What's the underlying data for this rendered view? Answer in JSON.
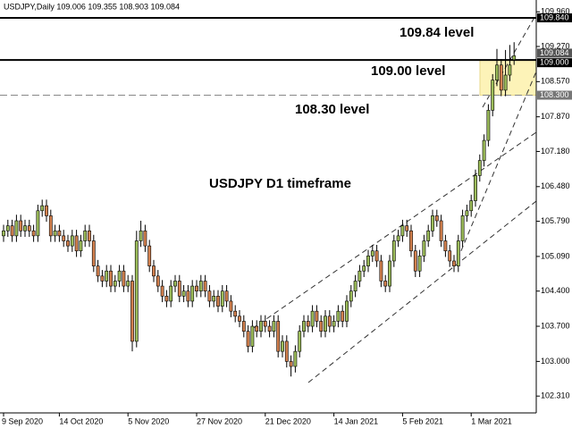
{
  "chart_data": {
    "type": "candlestick",
    "title": "USDJPY,Daily  109.006 109.355 108.903 109.084",
    "annotation": "USDJPY D1 timeframe",
    "categories": [
      "9 Sep 2020",
      null,
      null,
      null,
      null,
      null,
      null,
      null,
      null,
      null,
      null,
      null,
      null,
      "14 Oct 2020",
      null,
      null,
      null,
      null,
      null,
      null,
      null,
      null,
      null,
      null,
      null,
      null,
      null,
      null,
      null,
      "5 Nov 2020",
      null,
      null,
      null,
      null,
      null,
      null,
      null,
      null,
      null,
      null,
      null,
      null,
      null,
      null,
      null,
      "27 Nov 2020",
      null,
      null,
      null,
      null,
      null,
      null,
      null,
      null,
      null,
      null,
      null,
      null,
      null,
      null,
      null,
      "21 Dec 2020",
      null,
      null,
      null,
      null,
      null,
      null,
      null,
      null,
      null,
      null,
      null,
      null,
      null,
      null,
      null,
      "14 Jan 2021",
      null,
      null,
      null,
      null,
      null,
      null,
      null,
      null,
      null,
      null,
      null,
      null,
      null,
      null,
      null,
      "5 Feb 2021",
      null,
      null,
      null,
      null,
      null,
      null,
      null,
      null,
      null,
      null,
      null,
      null,
      null,
      null,
      null,
      "1 Mar 2021",
      null,
      null,
      null,
      null,
      null,
      null,
      null,
      null,
      null,
      null
    ],
    "open": [
      105.5,
      105.6,
      105.7,
      105.5,
      105.8,
      105.6,
      105.7,
      105.6,
      105.5,
      106.0,
      106.1,
      105.9,
      105.5,
      105.6,
      105.5,
      105.4,
      105.3,
      105.5,
      105.2,
      105.4,
      105.6,
      105.4,
      104.9,
      104.7,
      104.6,
      104.8,
      104.5,
      104.6,
      104.8,
      104.5,
      104.6,
      103.4,
      105.4,
      105.6,
      105.3,
      104.9,
      104.7,
      104.5,
      104.3,
      104.2,
      104.5,
      104.6,
      104.3,
      104.4,
      104.2,
      104.5,
      104.4,
      104.6,
      104.4,
      104.2,
      104.3,
      104.1,
      104.4,
      104.2,
      104.0,
      103.9,
      103.8,
      103.6,
      103.3,
      103.7,
      103.6,
      103.8,
      103.7,
      103.6,
      103.8,
      103.2,
      103.4,
      103.0,
      102.9,
      103.2,
      103.6,
      103.8,
      103.7,
      104.0,
      103.8,
      103.6,
      103.9,
      103.7,
      103.8,
      104.0,
      103.8,
      104.2,
      104.4,
      104.6,
      104.8,
      104.9,
      105.1,
      105.2,
      105.0,
      104.6,
      104.5,
      105.0,
      105.4,
      105.5,
      105.7,
      105.6,
      105.2,
      104.8,
      105.1,
      105.4,
      105.6,
      105.9,
      105.8,
      105.4,
      105.2,
      105.0,
      104.9,
      105.4,
      105.9,
      106.0,
      106.2,
      106.7,
      107.0,
      107.4,
      108.0,
      108.6,
      108.9,
      108.4,
      108.7,
      109.006
    ],
    "high": [
      105.72,
      105.82,
      105.82,
      105.92,
      105.92,
      105.82,
      105.82,
      105.72,
      106.12,
      106.22,
      106.22,
      106.02,
      105.72,
      105.72,
      105.62,
      105.52,
      105.62,
      105.62,
      105.52,
      105.72,
      105.72,
      105.52,
      105.02,
      104.82,
      104.92,
      104.92,
      104.72,
      104.92,
      104.92,
      104.72,
      104.72,
      105.6,
      105.8,
      105.72,
      105.42,
      105.02,
      104.82,
      104.62,
      104.42,
      104.62,
      104.72,
      104.72,
      104.52,
      104.52,
      104.62,
      104.62,
      104.72,
      104.72,
      104.52,
      104.42,
      104.42,
      104.52,
      104.52,
      104.32,
      104.12,
      104.02,
      103.92,
      103.72,
      103.82,
      103.82,
      103.92,
      103.92,
      103.82,
      103.92,
      103.92,
      103.52,
      103.52,
      103.12,
      103.32,
      103.72,
      103.92,
      103.92,
      104.12,
      104.12,
      103.92,
      104.02,
      104.02,
      103.92,
      104.12,
      104.12,
      104.32,
      104.52,
      104.72,
      104.92,
      105.02,
      105.22,
      105.32,
      105.32,
      105.12,
      104.72,
      105.12,
      105.52,
      105.62,
      105.82,
      105.82,
      105.72,
      105.32,
      105.22,
      105.52,
      105.72,
      106.02,
      106.02,
      105.92,
      105.52,
      105.32,
      105.12,
      105.52,
      106.02,
      106.12,
      106.32,
      106.82,
      107.12,
      107.52,
      108.12,
      108.72,
      109.22,
      109.02,
      109.2,
      109.3,
      109.355
    ],
    "low": [
      105.38,
      105.48,
      105.38,
      105.38,
      105.48,
      105.48,
      105.48,
      105.38,
      105.38,
      105.88,
      105.78,
      105.38,
      105.38,
      105.38,
      105.28,
      105.18,
      105.18,
      105.08,
      105.08,
      105.28,
      105.28,
      104.78,
      104.58,
      104.48,
      104.48,
      104.38,
      104.38,
      104.48,
      104.38,
      104.38,
      103.2,
      103.28,
      105.28,
      105.18,
      104.78,
      104.58,
      104.38,
      104.18,
      104.08,
      104.08,
      104.38,
      104.18,
      104.18,
      104.08,
      104.08,
      104.28,
      104.28,
      104.28,
      104.08,
      104.08,
      103.98,
      103.98,
      104.08,
      103.88,
      103.78,
      103.68,
      103.48,
      103.18,
      103.18,
      103.48,
      103.48,
      103.58,
      103.48,
      103.48,
      103.08,
      103.08,
      102.88,
      102.7,
      102.78,
      103.08,
      103.48,
      103.58,
      103.58,
      103.68,
      103.48,
      103.48,
      103.58,
      103.58,
      103.68,
      103.68,
      103.68,
      104.08,
      104.28,
      104.48,
      104.68,
      104.78,
      104.98,
      104.88,
      104.48,
      104.38,
      104.38,
      104.88,
      105.28,
      105.38,
      105.48,
      105.08,
      104.68,
      104.68,
      104.98,
      105.28,
      105.48,
      105.68,
      105.28,
      105.08,
      104.88,
      104.78,
      104.78,
      105.28,
      105.78,
      105.88,
      106.08,
      106.58,
      106.88,
      107.28,
      107.88,
      108.48,
      108.28,
      108.28,
      108.58,
      108.903
    ],
    "close": [
      105.6,
      105.7,
      105.5,
      105.8,
      105.6,
      105.7,
      105.6,
      105.5,
      106.0,
      106.1,
      105.9,
      105.5,
      105.6,
      105.5,
      105.4,
      105.3,
      105.5,
      105.2,
      105.4,
      105.6,
      105.4,
      104.9,
      104.7,
      104.6,
      104.8,
      104.5,
      104.6,
      104.8,
      104.5,
      104.6,
      103.4,
      105.4,
      105.6,
      105.3,
      104.9,
      104.7,
      104.5,
      104.3,
      104.2,
      104.5,
      104.6,
      104.3,
      104.4,
      104.2,
      104.5,
      104.4,
      104.6,
      104.4,
      104.2,
      104.3,
      104.1,
      104.4,
      104.2,
      104.0,
      103.9,
      103.8,
      103.6,
      103.3,
      103.7,
      103.6,
      103.8,
      103.7,
      103.6,
      103.8,
      103.2,
      103.4,
      103.0,
      102.9,
      103.2,
      103.6,
      103.8,
      103.7,
      104.0,
      103.8,
      103.6,
      103.9,
      103.7,
      103.8,
      104.0,
      103.8,
      104.2,
      104.4,
      104.6,
      104.8,
      104.9,
      105.1,
      105.2,
      105.0,
      104.6,
      104.5,
      105.0,
      105.4,
      105.5,
      105.7,
      105.6,
      105.2,
      104.8,
      105.1,
      105.4,
      105.6,
      105.9,
      105.8,
      105.4,
      105.2,
      105.0,
      104.9,
      105.4,
      105.9,
      106.0,
      106.2,
      106.7,
      107.0,
      107.4,
      108.0,
      108.6,
      108.9,
      108.4,
      108.7,
      108.9,
      109.084
    ],
    "up_color": "#9bbb59",
    "down_color": "#d2804e",
    "ylim": [
      101.975,
      110.195
    ],
    "yticks": [
      {
        "value": 102.31,
        "label": "102.310"
      },
      {
        "value": 103,
        "label": "103.000"
      },
      {
        "value": 103.7,
        "label": "103.700"
      },
      {
        "value": 104.4,
        "label": "104.400"
      },
      {
        "value": 105.09,
        "label": "105.090"
      },
      {
        "value": 105.79,
        "label": "105.790"
      },
      {
        "value": 106.48,
        "label": "106.480"
      },
      {
        "value": 107.18,
        "label": "107.180"
      },
      {
        "value": 107.87,
        "label": "107.870"
      },
      {
        "value": 108.57,
        "label": "108.570"
      },
      {
        "value": 109.27,
        "label": "109.270"
      },
      {
        "value": 109.96,
        "label": "109.960"
      }
    ],
    "levels": [
      {
        "value": 109.84,
        "label": "109.840",
        "text": "109.84 level",
        "style": "solid"
      },
      {
        "value": 109,
        "label": "109.000",
        "text": "109.00 level",
        "style": "solid"
      },
      {
        "value": 108.3,
        "label": "108.300",
        "text": "108.30 level",
        "style": "dashed"
      }
    ],
    "last_price": {
      "value": 109.084,
      "label": "109.084"
    }
  }
}
